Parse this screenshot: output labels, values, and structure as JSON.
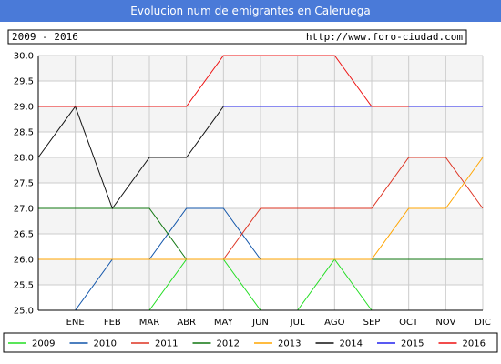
{
  "header": {
    "title": "Evolucion num de emigrantes en Caleruega",
    "period": "2009 - 2016",
    "url": "http://www.foro-ciudad.com"
  },
  "colors": {
    "header_bg": "#4a7ad8",
    "plot_bg": "#ffffff",
    "plot_band": "#f4f4f4",
    "grid": "#cccccc"
  },
  "chart_data": {
    "type": "line",
    "categories": [
      "",
      "ENE",
      "FEB",
      "MAR",
      "ABR",
      "MAY",
      "JUN",
      "JUL",
      "AGO",
      "SEP",
      "OCT",
      "NOV",
      "DIC"
    ],
    "ylim": [
      25.0,
      30.0
    ],
    "yticks": [
      "25.0",
      "25.5",
      "26.0",
      "26.5",
      "27.0",
      "27.5",
      "28.0",
      "28.5",
      "29.0",
      "29.5",
      "30.0"
    ],
    "grid": true,
    "legend_position": "bottom",
    "series": [
      {
        "name": "2009",
        "color": "#22dd22",
        "values": [
          25,
          25,
          25,
          25,
          26,
          26,
          25,
          25,
          26,
          25,
          null,
          null,
          null
        ]
      },
      {
        "name": "2010",
        "color": "#1155aa",
        "values": [
          25,
          25,
          26,
          26,
          27,
          27,
          26,
          null,
          null,
          null,
          null,
          null,
          null
        ]
      },
      {
        "name": "2011",
        "color": "#dd3322",
        "values": [
          null,
          null,
          null,
          null,
          null,
          26,
          27,
          27,
          27,
          27,
          28,
          28,
          27
        ]
      },
      {
        "name": "2012",
        "color": "#117711",
        "values": [
          27,
          27,
          27,
          27,
          26,
          null,
          null,
          null,
          null,
          26,
          26,
          26,
          26
        ]
      },
      {
        "name": "2013",
        "color": "#ffa500",
        "values": [
          26,
          26,
          26,
          26,
          26,
          26,
          26,
          26,
          26,
          26,
          27,
          27,
          28
        ]
      },
      {
        "name": "2014",
        "color": "#111111",
        "values": [
          28,
          29,
          27,
          28,
          28,
          29,
          null,
          null,
          null,
          null,
          null,
          null,
          null
        ]
      },
      {
        "name": "2015",
        "color": "#2222ee",
        "values": [
          null,
          null,
          null,
          null,
          null,
          29,
          29,
          29,
          29,
          29,
          29,
          29,
          29
        ]
      },
      {
        "name": "2016",
        "color": "#ee1111",
        "values": [
          29,
          29,
          29,
          29,
          29,
          30,
          30,
          30,
          30,
          29,
          29,
          null,
          null
        ]
      }
    ]
  }
}
